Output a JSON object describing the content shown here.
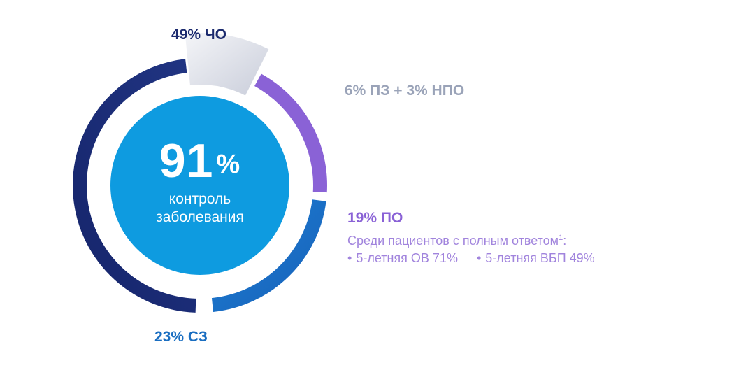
{
  "chart_data": {
    "type": "donut",
    "title": "",
    "center": {
      "value": "91",
      "unit": "%",
      "caption_line1": "контроль",
      "caption_line2": "заболевания"
    },
    "slices": [
      {
        "key": "cho",
        "label": "49% ЧО",
        "value": 49,
        "color": "#1b2a6e"
      },
      {
        "key": "pz_npo",
        "label": "6% ПЗ + 3% НПО",
        "value": 9,
        "color": "#d7dae6"
      },
      {
        "key": "po",
        "label": "19% ПО",
        "value": 19,
        "color": "#8a62d6"
      },
      {
        "key": "sz",
        "label": "23% СЗ",
        "value": 23,
        "color": "#1a6ec1"
      }
    ],
    "po_details": {
      "text": "Среди пациентов с полным ответом",
      "footnote": "1",
      "colon": ":",
      "bullets": [
        "5-летняя ОВ 71%",
        "5-летняя ВБП 49%"
      ]
    }
  },
  "colors": {
    "center_fill": "#0e9be0",
    "pz_label": "#9aa3b8"
  }
}
